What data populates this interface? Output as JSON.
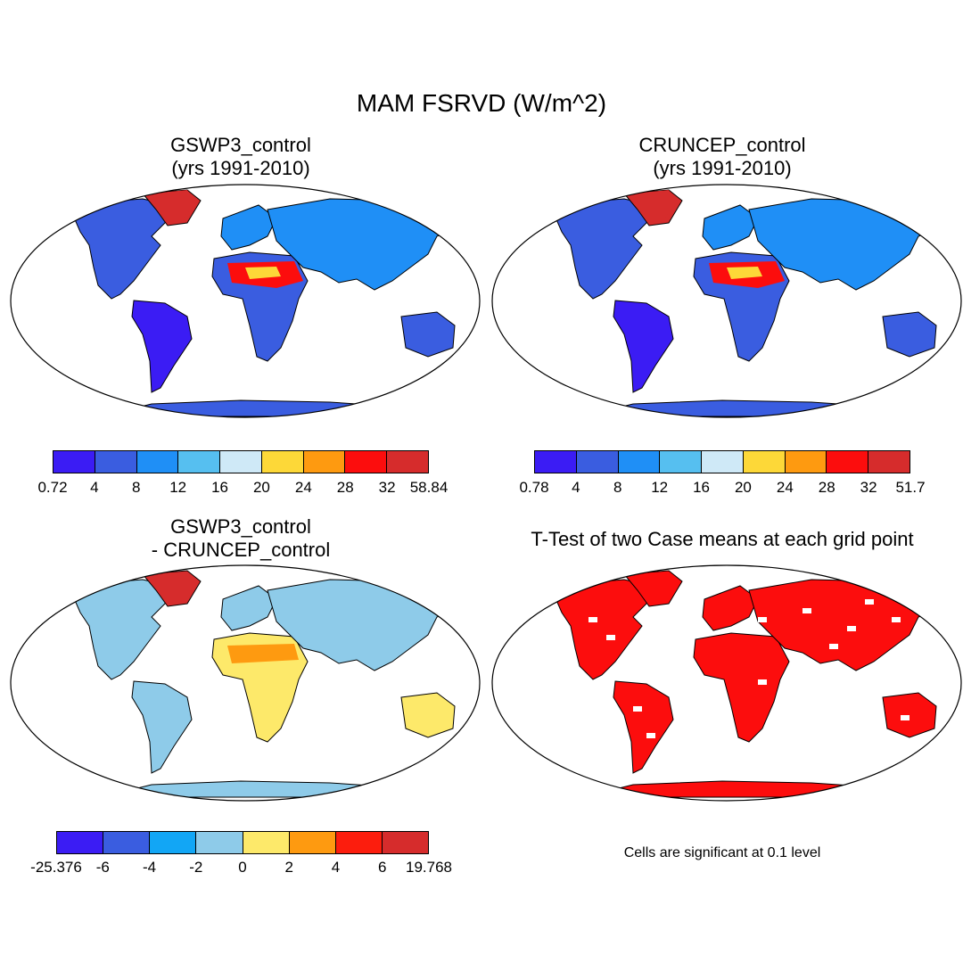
{
  "title": "MAM FSRVD (W/m^2)",
  "panels": [
    {
      "id": "gswp3",
      "title_line1": "GSWP3_control",
      "title_line2": "(yrs 1991-2010)",
      "colors": [
        "#3b1cf4",
        "#3a5de0",
        "#1f8ff6",
        "#56bff0",
        "#cfe9f7",
        "#fdd838",
        "#fe9a10",
        "#fc0d0d",
        "#d62c2c"
      ],
      "ticks": [
        "0.72",
        "4",
        "8",
        "12",
        "16",
        "20",
        "24",
        "28",
        "32",
        "58.84"
      ]
    },
    {
      "id": "cruncep",
      "title_line1": "CRUNCEP_control",
      "title_line2": "(yrs 1991-2010)",
      "colors": [
        "#3b1cf4",
        "#3a5de0",
        "#1f8ff6",
        "#56bff0",
        "#cfe9f7",
        "#fdd838",
        "#fe9a10",
        "#fc0d0d",
        "#d62c2c"
      ],
      "ticks": [
        "0.78",
        "4",
        "8",
        "12",
        "16",
        "20",
        "24",
        "28",
        "32",
        "51.7"
      ]
    },
    {
      "id": "diff",
      "title_line1": "GSWP3_control",
      "title_line2": "- CRUNCEP_control",
      "colors": [
        "#3b1cf4",
        "#3a5de0",
        "#12a6f5",
        "#8ecbe9",
        "#fde96a",
        "#fe9a10",
        "#fc1d0d",
        "#d62c2c"
      ],
      "ticks": [
        "-25.376",
        "-6",
        "-4",
        "-2",
        "0",
        "2",
        "4",
        "6",
        "19.768"
      ]
    },
    {
      "id": "ttest",
      "title_line1": "T-Test of two Case means at each grid point",
      "title_line2": "",
      "note": "Cells are significant at 0.1 level"
    }
  ]
}
